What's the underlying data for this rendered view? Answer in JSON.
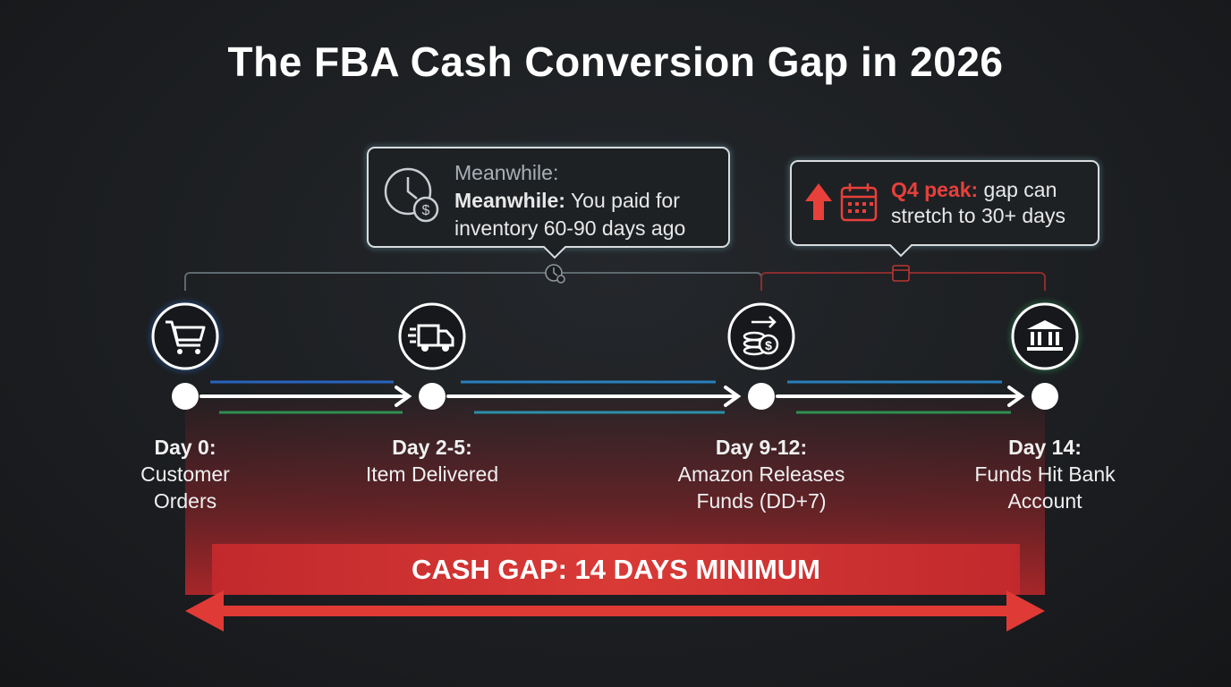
{
  "title": "The FBA Cash Conversion Gap in 2026",
  "callouts": [
    {
      "heading": "Meanwhile:",
      "bold": "Meanwhile:",
      "text": "You paid for inventory 60-90 days ago"
    },
    {
      "bold": "Q4 peak:",
      "text": "gap can stretch to 30+ days"
    }
  ],
  "steps": [
    {
      "day": "Day 0:",
      "label": "Customer Orders"
    },
    {
      "day": "Day 2-5:",
      "label": "Item Delivered"
    },
    {
      "day": "Day 9-12:",
      "label": "Amazon Releases Funds (DD+7)"
    },
    {
      "day": "Day 14:",
      "label": "Funds Hit Bank Account"
    }
  ],
  "gap": "CASH GAP: 14 DAYS MINIMUM"
}
